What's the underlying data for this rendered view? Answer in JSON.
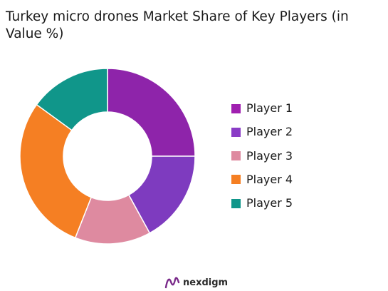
{
  "chart_data": {
    "type": "pie",
    "variant": "donut",
    "title": "Turkey micro drones Market Share of Key Players (in Value %)",
    "categories": [
      "Player 1",
      "Player 2",
      "Player 3",
      "Player 4",
      "Player 5"
    ],
    "values": [
      25,
      17,
      14,
      29,
      15
    ],
    "colors": [
      "#8e24aa",
      "#7e3bbf",
      "#de8aa0",
      "#f57f23",
      "#10968a"
    ],
    "legend_colors": [
      "#a020b0",
      "#8a3cc6",
      "#de8aa0",
      "#f57f23",
      "#10968a"
    ],
    "legend_position": "right"
  },
  "brand": {
    "name": "nexdigm",
    "logo_icon": "nexdigm-logo-icon",
    "accent": "#7a2a8a"
  }
}
